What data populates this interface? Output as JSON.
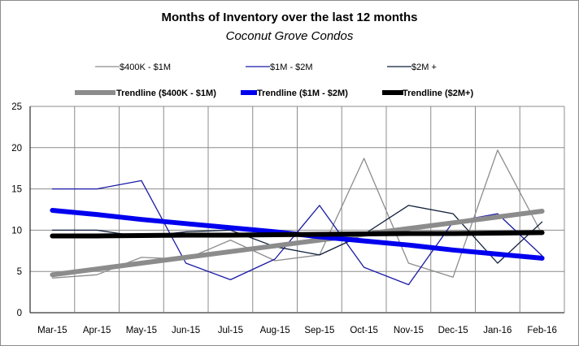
{
  "chart_data": {
    "type": "line",
    "title": "Months of Inventory over the last 12 months",
    "subtitle": "Coconut Grove Condos",
    "xlabel": "",
    "ylabel": "",
    "ylim": [
      0,
      25
    ],
    "yticks": [
      "0",
      "5",
      "10",
      "15",
      "20",
      "25"
    ],
    "categories": [
      "Mar-15",
      "Apr-15",
      "May-15",
      "Jun-15",
      "Jul-15",
      "Aug-15",
      "Sep-15",
      "Oct-15",
      "Nov-15",
      "Dec-15",
      "Jan-16",
      "Feb-16"
    ],
    "grid": true,
    "legend_position": "top",
    "series": [
      {
        "name": "$400K - $1M",
        "color": "#8c8c8c",
        "style": "thin",
        "values": [
          4.2,
          4.6,
          6.7,
          6.5,
          8.8,
          6.3,
          7.0,
          18.7,
          6.0,
          4.3,
          19.7,
          9.5
        ]
      },
      {
        "name": "$1M - $2M",
        "color": "#1a1aa6",
        "style": "thin",
        "values": [
          15.0,
          15.0,
          16.0,
          6.0,
          4.0,
          6.5,
          13.0,
          5.5,
          3.4,
          11.0,
          12.0,
          6.9
        ]
      },
      {
        "name": "$2M +",
        "color": "#0f1e3a",
        "style": "thin",
        "values": [
          10.0,
          10.0,
          9.2,
          9.8,
          10.0,
          8.0,
          7.0,
          9.5,
          13.0,
          12.0,
          6.0,
          11.0
        ]
      },
      {
        "name": "Trendline ($400K - $1M)",
        "color": "#8c8c8c",
        "style": "thick",
        "values": [
          4.6,
          5.3,
          6.0,
          6.7,
          7.4,
          8.1,
          8.8,
          9.5,
          10.2,
          10.9,
          11.6,
          12.3
        ]
      },
      {
        "name": "Trendline ($1M - $2M)",
        "color": "#0000ee",
        "style": "thick",
        "values": [
          12.4,
          11.9,
          11.3,
          10.8,
          10.3,
          9.8,
          9.2,
          8.7,
          8.2,
          7.6,
          7.1,
          6.6
        ]
      },
      {
        "name": "Trendline ($2M+)",
        "color": "#000000",
        "style": "thick",
        "values": [
          9.3,
          9.3,
          9.35,
          9.4,
          9.4,
          9.45,
          9.5,
          9.55,
          9.6,
          9.6,
          9.65,
          9.7
        ]
      }
    ]
  }
}
